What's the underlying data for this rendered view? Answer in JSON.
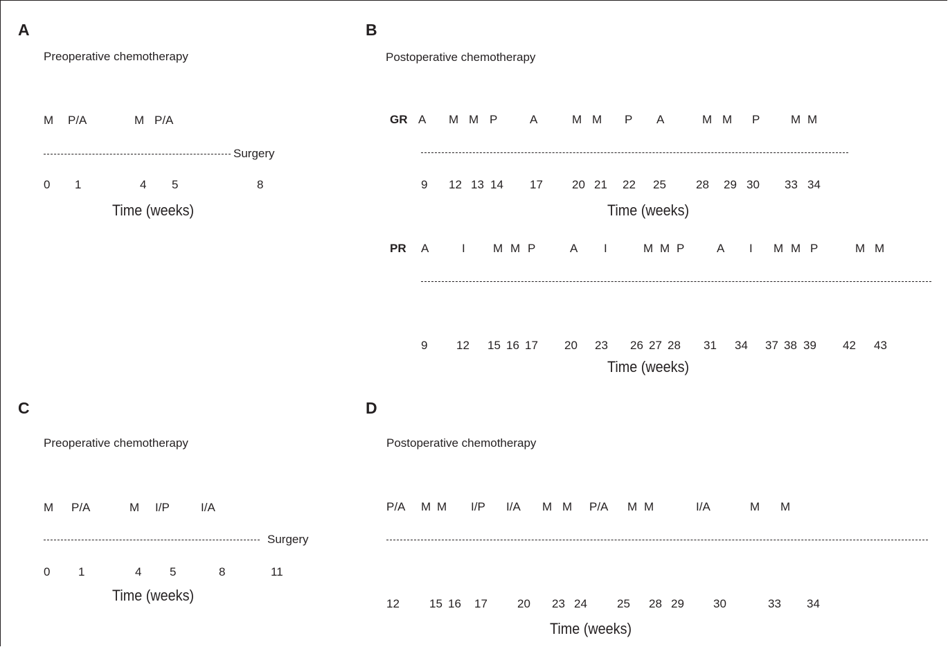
{
  "panels": {
    "a": {
      "letter": "A",
      "heading": "Preoperative chemotherapy",
      "drugs": [
        "M",
        "P/A",
        "M",
        "P/A"
      ],
      "weeks": [
        "0",
        "1",
        "4",
        "5",
        "8"
      ],
      "end_label": "Surgery",
      "axis_label": "Time (weeks)"
    },
    "b": {
      "letter": "B",
      "heading": "Postoperative chemotherapy",
      "gr": {
        "label": "GR",
        "drugs": [
          "A",
          "M",
          "M",
          "P",
          "A",
          "M",
          "M",
          "P",
          "A",
          "M",
          "M",
          "P",
          "M",
          "M"
        ],
        "weeks": [
          "9",
          "12",
          "13",
          "14",
          "17",
          "20",
          "21",
          "22",
          "25",
          "28",
          "29",
          "30",
          "33",
          "34"
        ],
        "axis_label": "Time (weeks)"
      },
      "pr": {
        "label": "PR",
        "drugs": [
          "A",
          "I",
          "M",
          "M",
          "P",
          "A",
          "I",
          "M",
          "M",
          "P",
          "A",
          "I",
          "M",
          "M",
          "P",
          "M",
          "M"
        ],
        "weeks": [
          "9",
          "12",
          "15",
          "16",
          "17",
          "20",
          "23",
          "26",
          "27",
          "28",
          "31",
          "34",
          "37",
          "38",
          "39",
          "42",
          "43"
        ],
        "axis_label": "Time (weeks)"
      }
    },
    "c": {
      "letter": "C",
      "heading": "Preoperative chemotherapy",
      "drugs": [
        "M",
        "P/A",
        "M",
        "I/P",
        "I/A"
      ],
      "weeks": [
        "0",
        "1",
        "4",
        "5",
        "8",
        "11"
      ],
      "end_label": "Surgery",
      "axis_label": "Time (weeks)"
    },
    "d": {
      "letter": "D",
      "heading": "Postoperative chemotherapy",
      "drugs": [
        "P/A",
        "M",
        "M",
        "I/P",
        "I/A",
        "M",
        "M",
        "P/A",
        "M",
        "M",
        "I/A",
        "M",
        "M"
      ],
      "weeks": [
        "12",
        "15",
        "16",
        "17",
        "20",
        "23",
        "24",
        "25",
        "28",
        "29",
        "30",
        "33",
        "34"
      ],
      "axis_label": "Time (weeks)"
    }
  }
}
